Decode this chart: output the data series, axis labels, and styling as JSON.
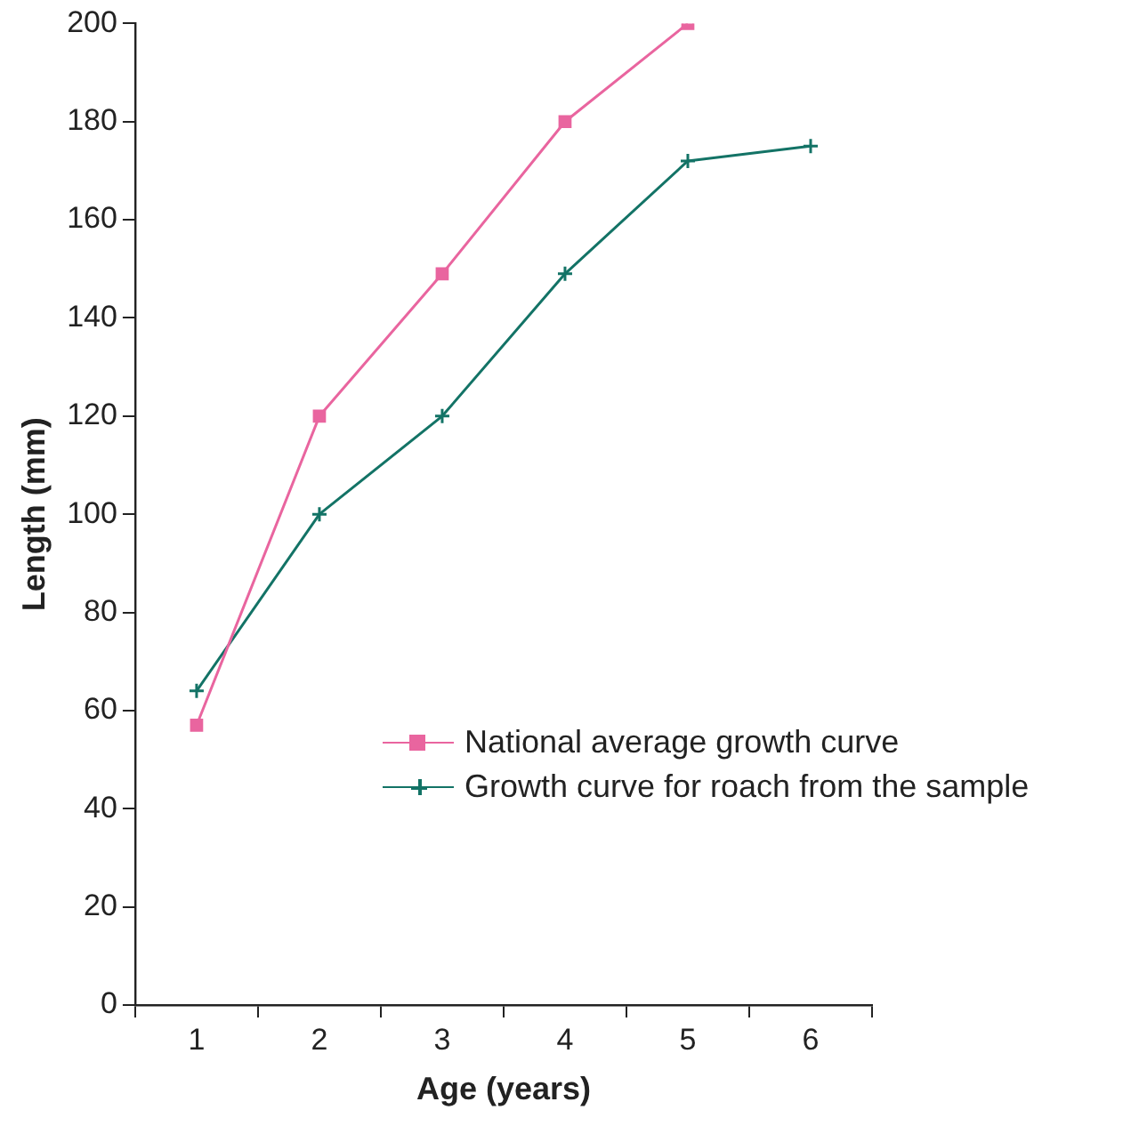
{
  "chart_data": {
    "type": "line",
    "xlabel": "Age (years)",
    "ylabel": "Length (mm)",
    "categories": [
      "1",
      "2",
      "3",
      "4",
      "5",
      "6"
    ],
    "series": [
      {
        "name": "National average growth curve",
        "color": "#e9659f",
        "marker": "square",
        "values": [
          57,
          120,
          149,
          180,
          200,
          null
        ]
      },
      {
        "name": "Growth curve for roach from the sample",
        "color": "#137366",
        "marker": "cross",
        "values": [
          64,
          100,
          120,
          149,
          172,
          175
        ]
      }
    ],
    "ylim": [
      0,
      200
    ],
    "yticks": [
      0,
      20,
      40,
      60,
      80,
      100,
      120,
      140,
      160,
      180,
      200
    ],
    "grid": false,
    "legend": "bottom right",
    "line_style": "solid"
  }
}
